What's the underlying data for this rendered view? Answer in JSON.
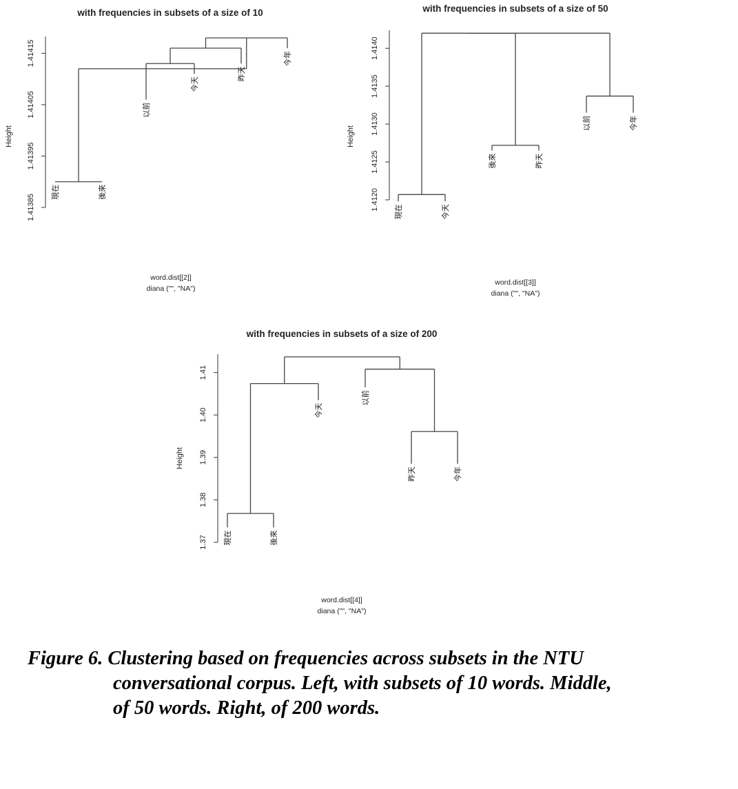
{
  "chart_data": [
    {
      "type": "dendrogram",
      "title": "with frequencies in subsets of a size of 10",
      "ylabel": "Height",
      "xlabel": "word.dist[[2]]",
      "sublabel": "diana (\"\", \"NA\")",
      "ylim": [
        1.41385,
        1.41418
      ],
      "yticks": [
        1.41385,
        1.41395,
        1.41405,
        1.41415
      ],
      "ytick_labels": [
        "1.41385",
        "1.41395",
        "1.41405",
        "1.41415"
      ],
      "leaves": [
        "現在",
        "後來",
        "以前",
        "今天",
        "昨天",
        "今年"
      ],
      "leaf_heights": [
        1.4139,
        1.4139,
        1.41406,
        1.41411,
        1.41413,
        1.41416
      ],
      "merges": [
        {
          "left": "L0",
          "right": "L1",
          "height": 1.4139
        },
        {
          "left": "L2",
          "right": "L3",
          "height": 1.41413
        },
        {
          "left": "C1",
          "right": "L4",
          "height": 1.41416
        },
        {
          "left": "C2",
          "right": "L5",
          "height": 1.41418
        },
        {
          "left": "C0",
          "right": "C3",
          "height": 1.41412
        }
      ]
    },
    {
      "type": "dendrogram",
      "title": "with frequencies in subsets of a size of 50",
      "ylabel": "Height",
      "xlabel": "word.dist[[3]]",
      "sublabel": "diana (\"\", \"NA\")",
      "ylim": [
        1.412,
        1.41422
      ],
      "yticks": [
        1.412,
        1.4125,
        1.413,
        1.4135,
        1.414
      ],
      "ytick_labels": [
        "1.4120",
        "1.4125",
        "1.4130",
        "1.4135",
        "1.4140"
      ],
      "leaves": [
        "現在",
        "今天",
        "後來",
        "昨天",
        "以前",
        "今年"
      ],
      "leaf_heights": [
        1.41198,
        1.41198,
        1.41265,
        1.41265,
        1.41315,
        1.41315
      ],
      "merges": [
        {
          "left": "L0",
          "right": "L1",
          "height": 1.41207
        },
        {
          "left": "L2",
          "right": "L3",
          "height": 1.41272
        },
        {
          "left": "L4",
          "right": "L5",
          "height": 1.41337
        },
        {
          "left": "C0",
          "right": "C1",
          "height": 1.4142
        },
        {
          "left": "C3",
          "right": "C2",
          "height": 1.4142
        }
      ]
    },
    {
      "type": "dendrogram",
      "title": "with frequencies in subsets of a size of 200",
      "ylabel": "Height",
      "xlabel": "word.dist[[4]]",
      "sublabel": "diana (\"\", \"NA\")",
      "ylim": [
        1.37,
        1.414
      ],
      "yticks": [
        1.37,
        1.38,
        1.39,
        1.4,
        1.41
      ],
      "ytick_labels": [
        "1.37",
        "1.38",
        "1.39",
        "1.40",
        "1.41"
      ],
      "leaves": [
        "現在",
        "後來",
        "今天",
        "以前",
        "昨天",
        "今年"
      ],
      "leaf_heights": [
        1.3735,
        1.3735,
        1.4035,
        1.4065,
        1.3885,
        1.3885
      ],
      "merges": [
        {
          "left": "L0",
          "right": "L1",
          "height": 1.3768
        },
        {
          "left": "C0",
          "right": "L2",
          "height": 1.4074
        },
        {
          "left": "L4",
          "right": "L5",
          "height": 1.3961
        },
        {
          "left": "L3",
          "right": "C2",
          "height": 1.4108
        },
        {
          "left": "C1",
          "right": "C3",
          "height": 1.4137
        }
      ]
    }
  ],
  "caption": {
    "line1": "Figure 6. Clustering based on frequencies across subsets in the NTU",
    "line2": "conversational corpus. Left, with subsets of 10 words. Middle,",
    "line3": "of 50 words. Right, of 200 words."
  }
}
